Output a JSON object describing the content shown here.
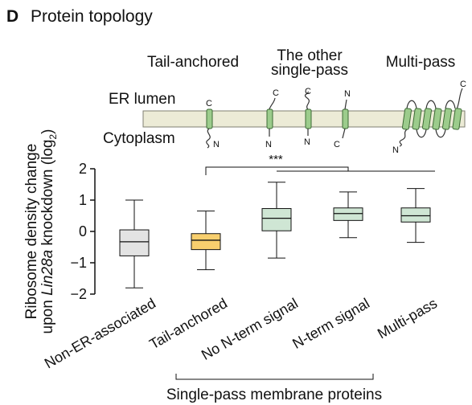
{
  "panel": {
    "letter": "D",
    "title": "Protein topology"
  },
  "schematic": {
    "headers": [
      "Tail-anchored",
      "The other",
      "single-pass",
      "Multi-pass"
    ],
    "compartments": {
      "lumen": "ER lumen",
      "cytoplasm": "Cytoplasm"
    },
    "termini": {
      "c": "C",
      "n": "N"
    }
  },
  "chart_data": {
    "type": "box",
    "ylabel_line1": "Ribosome density change",
    "ylabel_line2_prefix": "upon ",
    "ylabel_line2_gene": "Lin28a",
    "ylabel_line2_mid": " knockdown (log",
    "ylabel_line2_sub": "2",
    "ylabel_line2_end": ")",
    "ylim": [
      -2,
      2
    ],
    "yticks": [
      2,
      1,
      0,
      -1,
      -2
    ],
    "ytick_labels": [
      "2",
      "1",
      "0",
      "−1",
      "−2"
    ],
    "categories": [
      "Non-ER-associated",
      "Tail-anchored",
      "No N-term signal",
      "N-term signal",
      "Multi-pass"
    ],
    "boxes": [
      {
        "whisker_low": -1.8,
        "q1": -0.78,
        "median": -0.33,
        "q3": 0.05,
        "whisker_high": 1.0,
        "color": "#e3e3e3"
      },
      {
        "whisker_low": -1.22,
        "q1": -0.58,
        "median": -0.28,
        "q3": -0.07,
        "whisker_high": 0.65,
        "color": "#f8cf6e"
      },
      {
        "whisker_low": -0.85,
        "q1": 0.02,
        "median": 0.42,
        "q3": 0.73,
        "whisker_high": 1.57,
        "color": "#cfe6d4"
      },
      {
        "whisker_low": -0.2,
        "q1": 0.35,
        "median": 0.57,
        "q3": 0.75,
        "whisker_high": 1.26,
        "color": "#cfe6d4"
      },
      {
        "whisker_low": -0.35,
        "q1": 0.3,
        "median": 0.5,
        "q3": 0.75,
        "whisker_high": 1.37,
        "color": "#cfe6d4"
      }
    ],
    "significance": "***",
    "group_label": "Single-pass membrane proteins"
  }
}
